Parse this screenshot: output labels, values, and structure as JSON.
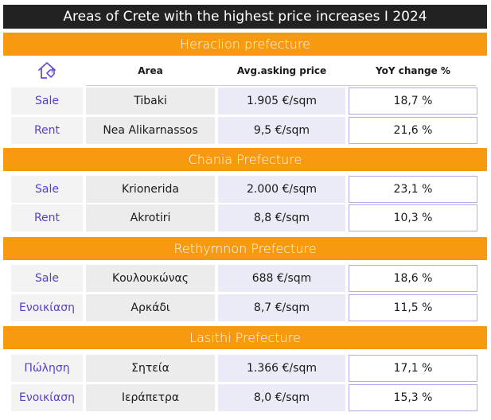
{
  "title": "Areas of Crete with the highest price increases I 2024",
  "headers": {
    "area": "Area",
    "price": "Avg.asking price",
    "yoy": "YoY change %"
  },
  "icon": "house-with-tag-icon",
  "colors": {
    "title_bg": "#222222",
    "section_bg": "#f79a10",
    "type_text": "#5a3ec8",
    "yoy_border": "#b9a7e8"
  },
  "sections": [
    {
      "name": "Heraclion prefecture",
      "rows": [
        {
          "type": "Sale",
          "area": "Tibaki",
          "price": "1.905 €/sqm",
          "yoy": "18,7 %"
        },
        {
          "type": "Rent",
          "area": "Nea Alikarnassos",
          "price": "9,5 €/sqm",
          "yoy": "21,6 %"
        }
      ]
    },
    {
      "name": "Chania Prefecture",
      "rows": [
        {
          "type": "Sale",
          "area": "Krionerida",
          "price": "2.000 €/sqm",
          "yoy": "23,1 %"
        },
        {
          "type": "Rent",
          "area": "Akrotiri",
          "price": "8,8 €/sqm",
          "yoy": "10,3 %"
        }
      ]
    },
    {
      "name": "Rethymnon Prefecture",
      "rows": [
        {
          "type": "Sale",
          "area": "Κουλουκώνας",
          "price": "688 €/sqm",
          "yoy": "18,6 %"
        },
        {
          "type": "Ενοικίαση",
          "area": "Αρκάδι",
          "price": "8,7 €/sqm",
          "yoy": "11,5 %"
        }
      ]
    },
    {
      "name": "Lasithi Prefecture",
      "rows": [
        {
          "type": "Πώληση",
          "area": "Σητεία",
          "price": "1.366 €/sqm",
          "yoy": "17,1 %"
        },
        {
          "type": "Ενοικίαση",
          "area": "Ιεράπετρα",
          "price": "8,0 €/sqm",
          "yoy": "15,3 %"
        }
      ]
    }
  ]
}
